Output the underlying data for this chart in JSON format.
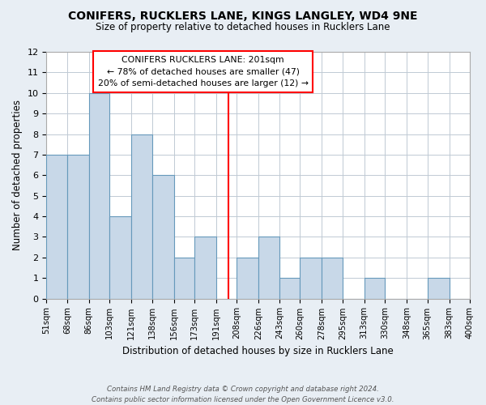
{
  "title": "CONIFERS, RUCKLERS LANE, KINGS LANGLEY, WD4 9NE",
  "subtitle": "Size of property relative to detached houses in Rucklers Lane",
  "xlabel": "Distribution of detached houses by size in Rucklers Lane",
  "ylabel": "Number of detached properties",
  "bin_edges": [
    51,
    68,
    86,
    103,
    121,
    138,
    156,
    173,
    191,
    208,
    226,
    243,
    260,
    278,
    295,
    313,
    330,
    348,
    365,
    383,
    400
  ],
  "bin_labels": [
    "51sqm",
    "68sqm",
    "86sqm",
    "103sqm",
    "121sqm",
    "138sqm",
    "156sqm",
    "173sqm",
    "191sqm",
    "208sqm",
    "226sqm",
    "243sqm",
    "260sqm",
    "278sqm",
    "295sqm",
    "313sqm",
    "330sqm",
    "348sqm",
    "365sqm",
    "383sqm",
    "400sqm"
  ],
  "counts": [
    7,
    7,
    10,
    4,
    8,
    6,
    2,
    3,
    0,
    2,
    3,
    1,
    2,
    2,
    0,
    1,
    0,
    0,
    1,
    0
  ],
  "bar_color": "#c8d8e8",
  "bar_edge_color": "#6699bb",
  "reference_line_x": 201,
  "reference_line_color": "red",
  "ylim": [
    0,
    12
  ],
  "yticks": [
    0,
    1,
    2,
    3,
    4,
    5,
    6,
    7,
    8,
    9,
    10,
    11,
    12
  ],
  "annotation_title": "CONIFERS RUCKLERS LANE: 201sqm",
  "annotation_line1": "← 78% of detached houses are smaller (47)",
  "annotation_line2": "20% of semi-detached houses are larger (12) →",
  "annotation_box_color": "white",
  "annotation_box_edge_color": "red",
  "footer_line1": "Contains HM Land Registry data © Crown copyright and database right 2024.",
  "footer_line2": "Contains public sector information licensed under the Open Government Licence v3.0.",
  "background_color": "#e8eef4",
  "plot_background_color": "white",
  "grid_color": "#c0cad4"
}
